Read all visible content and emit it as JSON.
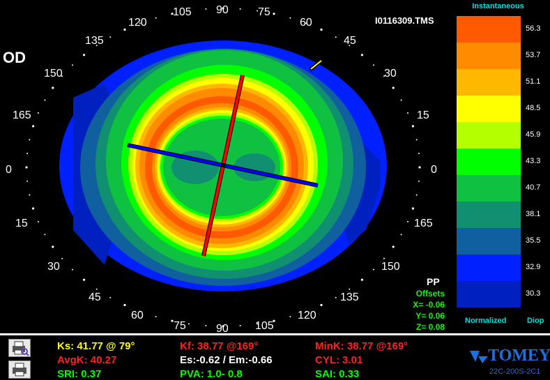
{
  "file_name": "I0116309.TMS",
  "eye_label": "OD",
  "axis_labels": {
    "top": [
      "105",
      "90",
      "75",
      "120",
      "60",
      "135",
      "45",
      "150",
      "30",
      "165",
      "15",
      "0",
      "0"
    ],
    "bottom": [
      "15",
      "165",
      "30",
      "150",
      "45",
      "135",
      "60",
      "120",
      "75",
      "90",
      "105"
    ]
  },
  "legend": {
    "title": "Instantaneous",
    "normalized_label": "Normalized",
    "units_label": "Diop",
    "scale": [
      {
        "value": "56.3",
        "color": "#ff5a00"
      },
      {
        "value": "53.7",
        "color": "#ff8c00"
      },
      {
        "value": "51.1",
        "color": "#ffb800"
      },
      {
        "value": "48.5",
        "color": "#ffff00"
      },
      {
        "value": "45.9",
        "color": "#b4ff00"
      },
      {
        "value": "43.3",
        "color": "#00ff00"
      },
      {
        "value": "40.7",
        "color": "#10c040"
      },
      {
        "value": "38.1",
        "color": "#109070"
      },
      {
        "value": "35.5",
        "color": "#1060a0"
      },
      {
        "value": "32.9",
        "color": "#0020ff"
      },
      {
        "value": "30.3",
        "color": "#0020c0"
      }
    ]
  },
  "pp_label": "PP",
  "offsets": {
    "title": "Offsets",
    "x": "X= -0.06",
    "y": "Y=  0.06",
    "z": "Z=  0.08"
  },
  "stats": {
    "ks": "Ks: 41.77 @ 79°",
    "kf": "Kf: 38.77 @169°",
    "mink": "MinK: 38.77 @169°",
    "avgk": "AvgK: 40.27",
    "es_em": "Es:-0.62 / Em:-0.66",
    "cyl": "CYL:  3.01",
    "sri": "SRI: 0.37",
    "pva": "PVA:   1.0-  0.8",
    "sai": "SAI: 0.33"
  },
  "brand": "TOMEY",
  "brand_code": "22C-200S-2C1",
  "colors": {
    "stat_yellow": "#ffff00",
    "stat_red": "#ff2020",
    "stat_white": "#ffffff",
    "stat_green": "#00ff00",
    "brand_blue": "#1e6fe0",
    "axis_steep": "#ff0000",
    "axis_flat": "#0000ff"
  }
}
